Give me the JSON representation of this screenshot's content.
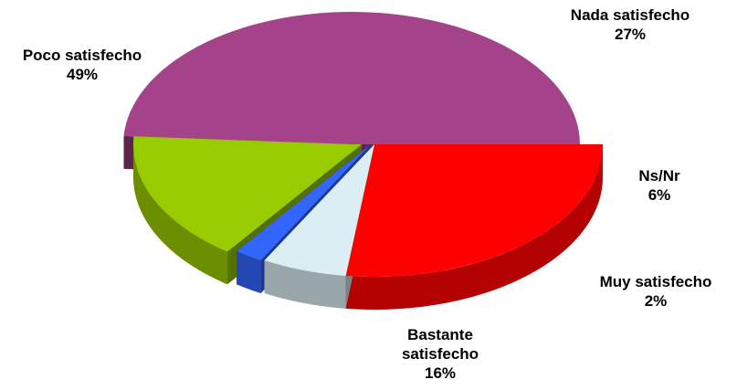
{
  "chart_data": {
    "type": "pie",
    "style": "3d-exploded",
    "title": "",
    "slices": [
      {
        "label": "Nada satisfecho",
        "value": 27,
        "value_label": "27%",
        "color": "#ff0000"
      },
      {
        "label": "Ns/Nr",
        "value": 6,
        "value_label": "6%",
        "color": "#dbeef4"
      },
      {
        "label": "Muy satisfecho",
        "value": 2,
        "value_label": "2%",
        "color": "#3366ff"
      },
      {
        "label": "Bastante satisfecho",
        "value": 16,
        "value_label": "16%",
        "color": "#99cc00"
      },
      {
        "label": "Poco satisfecho",
        "value": 49,
        "value_label": "49%",
        "color": "#a5438a"
      }
    ],
    "legend": "none"
  }
}
